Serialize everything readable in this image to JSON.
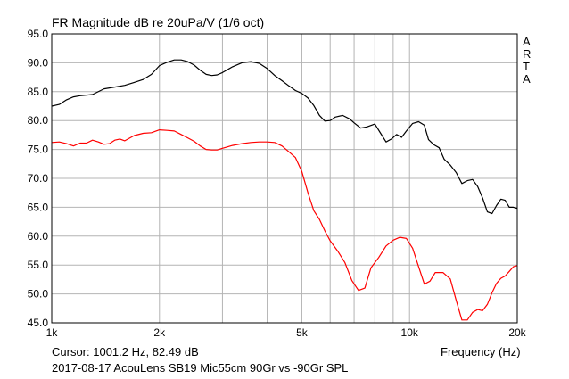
{
  "title": "FR Magnitude dB re 20uPa/V (1/6 oct)",
  "watermark": [
    "A",
    "R",
    "T",
    "A"
  ],
  "cursor_readout": "Cursor: 1001.2 Hz, 82.49 dB",
  "footnote": "2017-08-17 AcouLens SB19 Mic55cm 90Gr vs -90Gr SPL",
  "chart_data": {
    "type": "line",
    "title": "FR Magnitude dB re 20uPa/V (1/6 oct)",
    "xlabel": "Frequency (Hz)",
    "ylabel": "",
    "xscale": "log",
    "xlim": [
      1000,
      20000
    ],
    "ylim": [
      45,
      95
    ],
    "grid": true,
    "yticks": [
      45,
      50,
      55,
      60,
      65,
      70,
      75,
      80,
      85,
      90,
      95
    ],
    "ytick_labels": [
      "45.0",
      "50.0",
      "55.0",
      "60.0",
      "65.0",
      "70.0",
      "75.0",
      "80.0",
      "85.0",
      "90.0",
      "95.0"
    ],
    "xticks_labeled": [
      1000,
      2000,
      5000,
      10000,
      20000
    ],
    "xtick_labels": [
      "1k",
      "2k",
      "5k",
      "10k",
      "20k"
    ],
    "xgrid": [
      2000,
      3000,
      4000,
      5000,
      6000,
      7000,
      8000,
      9000,
      10000,
      20000
    ],
    "series": [
      {
        "color": "#000000",
        "points": [
          [
            1000,
            82.5
          ],
          [
            1050,
            82.8
          ],
          [
            1100,
            83.6
          ],
          [
            1150,
            84.1
          ],
          [
            1200,
            84.3
          ],
          [
            1300,
            84.5
          ],
          [
            1400,
            85.5
          ],
          [
            1500,
            85.8
          ],
          [
            1600,
            86.1
          ],
          [
            1700,
            86.6
          ],
          [
            1800,
            87.1
          ],
          [
            1900,
            88.0
          ],
          [
            2000,
            89.5
          ],
          [
            2100,
            90.1
          ],
          [
            2200,
            90.5
          ],
          [
            2300,
            90.5
          ],
          [
            2400,
            90.2
          ],
          [
            2500,
            89.6
          ],
          [
            2600,
            88.7
          ],
          [
            2700,
            88.0
          ],
          [
            2800,
            87.8
          ],
          [
            2900,
            87.9
          ],
          [
            3000,
            88.3
          ],
          [
            3200,
            89.3
          ],
          [
            3400,
            90.0
          ],
          [
            3600,
            90.2
          ],
          [
            3800,
            89.9
          ],
          [
            4000,
            89.0
          ],
          [
            4200,
            87.8
          ],
          [
            4400,
            86.9
          ],
          [
            4600,
            86.0
          ],
          [
            4800,
            85.2
          ],
          [
            5000,
            84.7
          ],
          [
            5200,
            83.9
          ],
          [
            5400,
            82.6
          ],
          [
            5600,
            80.9
          ],
          [
            5800,
            79.9
          ],
          [
            6000,
            80.0
          ],
          [
            6200,
            80.6
          ],
          [
            6500,
            80.9
          ],
          [
            6800,
            80.3
          ],
          [
            7000,
            79.6
          ],
          [
            7300,
            78.7
          ],
          [
            7600,
            78.9
          ],
          [
            8000,
            79.4
          ],
          [
            8300,
            77.8
          ],
          [
            8600,
            76.3
          ],
          [
            8900,
            76.8
          ],
          [
            9200,
            77.6
          ],
          [
            9500,
            77.1
          ],
          [
            9800,
            78.2
          ],
          [
            10200,
            79.5
          ],
          [
            10600,
            79.8
          ],
          [
            11000,
            79.2
          ],
          [
            11300,
            76.7
          ],
          [
            11700,
            75.8
          ],
          [
            12100,
            75.3
          ],
          [
            12500,
            73.3
          ],
          [
            13000,
            72.3
          ],
          [
            13500,
            71.0
          ],
          [
            14000,
            69.1
          ],
          [
            14500,
            69.6
          ],
          [
            15000,
            69.8
          ],
          [
            15500,
            68.6
          ],
          [
            16000,
            66.6
          ],
          [
            16500,
            64.2
          ],
          [
            17000,
            63.9
          ],
          [
            17500,
            65.3
          ],
          [
            18000,
            66.4
          ],
          [
            18500,
            66.2
          ],
          [
            19000,
            65.0
          ],
          [
            19500,
            65.0
          ],
          [
            20000,
            64.8
          ]
        ]
      },
      {
        "color": "#ff0000",
        "points": [
          [
            1000,
            76.2
          ],
          [
            1050,
            76.3
          ],
          [
            1100,
            76.0
          ],
          [
            1150,
            75.6
          ],
          [
            1200,
            76.1
          ],
          [
            1250,
            76.1
          ],
          [
            1300,
            76.6
          ],
          [
            1350,
            76.3
          ],
          [
            1400,
            75.9
          ],
          [
            1450,
            76.0
          ],
          [
            1500,
            76.6
          ],
          [
            1550,
            76.8
          ],
          [
            1600,
            76.5
          ],
          [
            1700,
            77.4
          ],
          [
            1800,
            77.8
          ],
          [
            1900,
            77.9
          ],
          [
            2000,
            78.4
          ],
          [
            2100,
            78.3
          ],
          [
            2200,
            78.2
          ],
          [
            2300,
            77.6
          ],
          [
            2400,
            77.0
          ],
          [
            2500,
            76.4
          ],
          [
            2600,
            75.6
          ],
          [
            2700,
            75.0
          ],
          [
            2800,
            74.9
          ],
          [
            2900,
            74.9
          ],
          [
            3000,
            75.2
          ],
          [
            3200,
            75.7
          ],
          [
            3400,
            76.0
          ],
          [
            3600,
            76.2
          ],
          [
            3800,
            76.3
          ],
          [
            4000,
            76.3
          ],
          [
            4200,
            76.2
          ],
          [
            4400,
            75.6
          ],
          [
            4600,
            74.6
          ],
          [
            4800,
            73.6
          ],
          [
            5000,
            71.2
          ],
          [
            5200,
            67.5
          ],
          [
            5400,
            64.4
          ],
          [
            5600,
            62.9
          ],
          [
            5800,
            60.9
          ],
          [
            6000,
            59.2
          ],
          [
            6300,
            57.4
          ],
          [
            6600,
            55.4
          ],
          [
            6900,
            52.3
          ],
          [
            7200,
            50.6
          ],
          [
            7500,
            51.0
          ],
          [
            7800,
            54.5
          ],
          [
            8200,
            56.3
          ],
          [
            8600,
            58.3
          ],
          [
            9000,
            59.3
          ],
          [
            9400,
            59.8
          ],
          [
            9800,
            59.6
          ],
          [
            10200,
            57.9
          ],
          [
            10600,
            54.7
          ],
          [
            11000,
            51.7
          ],
          [
            11400,
            52.2
          ],
          [
            11800,
            53.7
          ],
          [
            12400,
            53.7
          ],
          [
            13000,
            52.6
          ],
          [
            13500,
            48.9
          ],
          [
            14000,
            45.5
          ],
          [
            14500,
            45.5
          ],
          [
            15000,
            46.8
          ],
          [
            15500,
            47.3
          ],
          [
            16000,
            47.1
          ],
          [
            16500,
            48.2
          ],
          [
            17000,
            50.2
          ],
          [
            17500,
            51.8
          ],
          [
            18000,
            52.7
          ],
          [
            18500,
            53.1
          ],
          [
            19000,
            53.9
          ],
          [
            19500,
            54.7
          ],
          [
            20000,
            54.9
          ]
        ]
      }
    ]
  }
}
